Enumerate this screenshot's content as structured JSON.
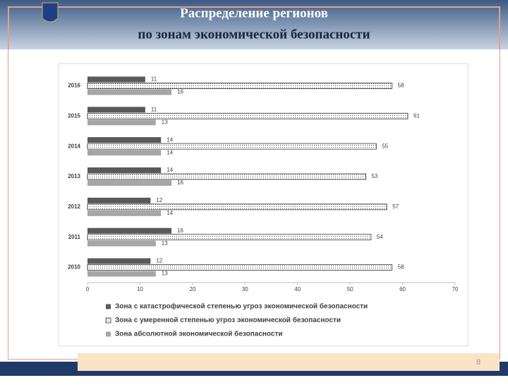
{
  "slide": {
    "title_line1": "Распределение регионов",
    "title_line2": "по зонам экономической безопасности",
    "page_number": "8"
  },
  "chart_data": {
    "type": "hbar",
    "categories": [
      "2016",
      "2015",
      "2014",
      "2013",
      "2012",
      "2011",
      "2010"
    ],
    "series": [
      {
        "name": "Зона с катастрофической степенью угроз экономической безопасности",
        "color": "#595959",
        "values": [
          11,
          11,
          14,
          14,
          12,
          16,
          12
        ]
      },
      {
        "name": "Зона с умеренной степенью угроз экономической безопасности",
        "color": "#ffffff",
        "values": [
          58,
          61,
          55,
          53,
          57,
          54,
          58
        ]
      },
      {
        "name": "Зона абсолютной экономической безопасности",
        "color": "#a6a6a6",
        "values": [
          16,
          13,
          14,
          16,
          14,
          13,
          13
        ]
      }
    ],
    "xlim": [
      0,
      70
    ],
    "xticks": [
      0,
      10,
      20,
      30,
      40,
      50,
      60,
      70
    ],
    "grid": false
  }
}
